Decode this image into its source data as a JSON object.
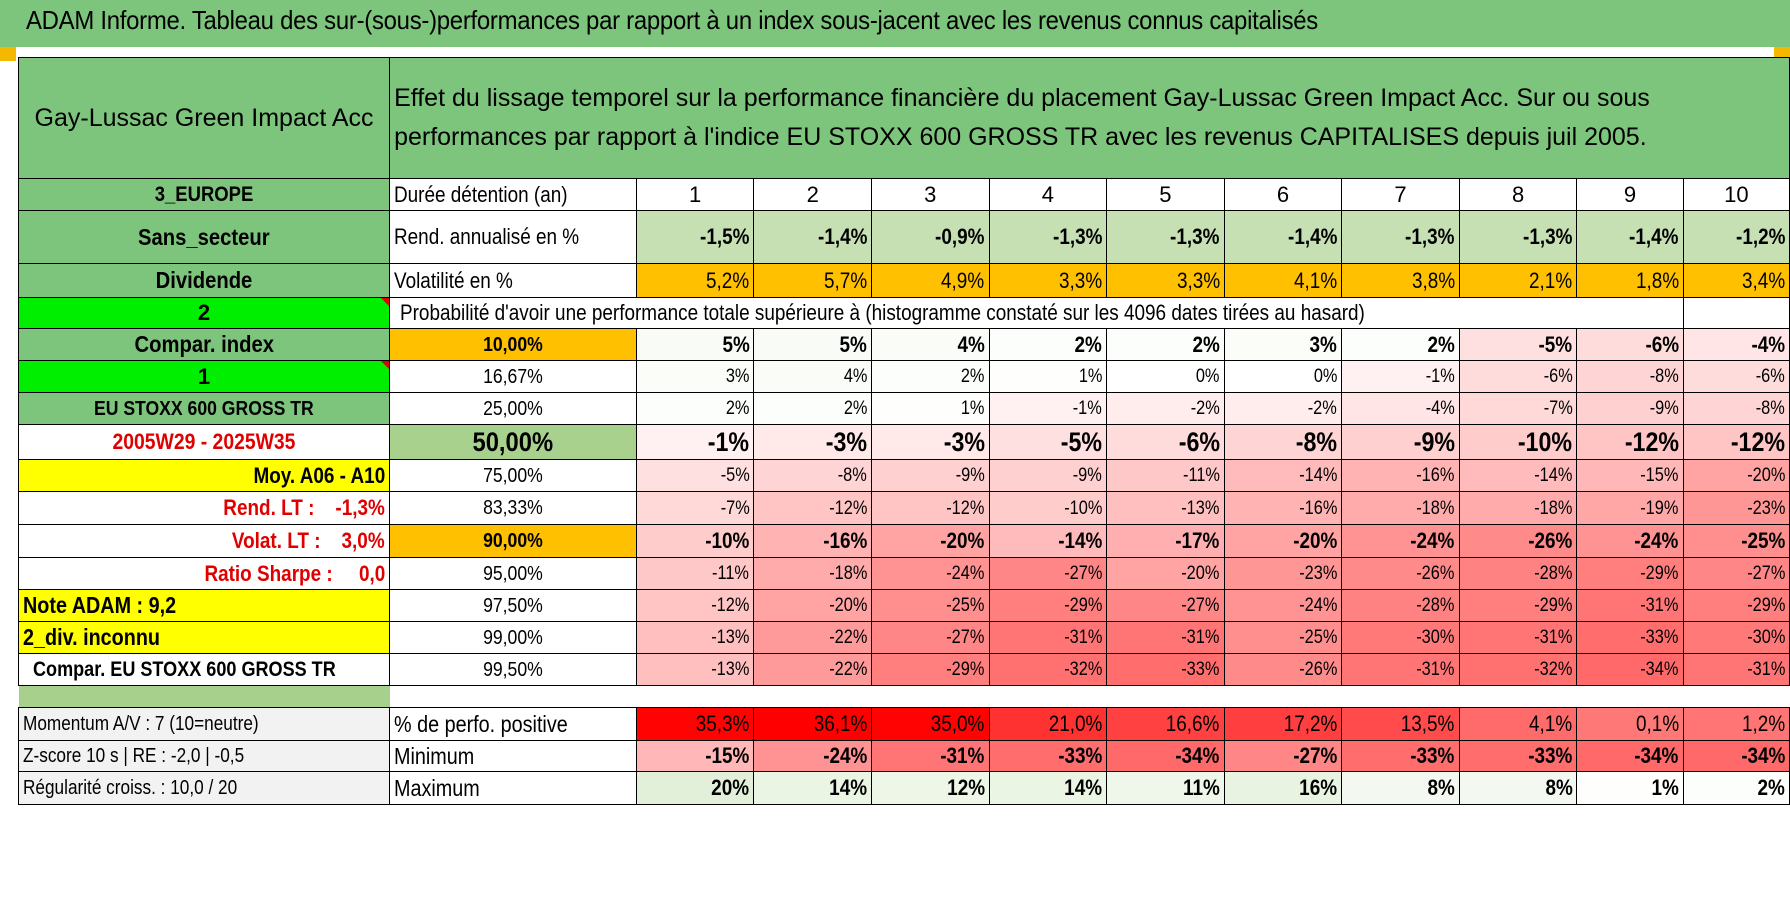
{
  "header": {
    "title": "ADAM Informe. Tableau des sur-(sous-)performances par rapport à un index sous-jacent avec les revenus connus capitalisés"
  },
  "fund": {
    "name": "Gay-Lussac Green Impact Acc",
    "description": "Effet du lissage temporel sur la performance financière du placement Gay-Lussac Green Impact Acc. Sur ou sous performances par rapport à l'indice EU STOXX 600 GROSS TR avec les revenus CAPITALISES depuis juil 2005."
  },
  "side": {
    "zone": "3_EUROPE",
    "sector": "Sans_secteur",
    "dividend": "Dividende",
    "code2": "2",
    "compar_index": "Compar. index",
    "code1": "1",
    "index_name": "EU STOXX 600 GROSS TR",
    "period": "2005W29 - 2025W35",
    "moy": "Moy. A06 - A10",
    "rend_lt": "Rend. LT :    -1,3%",
    "volat_lt": "Volat. LT :    3,0%",
    "sharpe": "Ratio Sharpe :     0,0",
    "note": "Note ADAM : 9,2",
    "div": "2_div. inconnu",
    "compar_full": "Compar. EU STOXX 600 GROSS TR",
    "momentum": "Momentum A/V : 7 (10=neutre)",
    "zscore": "Z-score 10 s | RE : -2,0 | -0,5",
    "regularite": "Régularité croiss. : 10,0 / 20"
  },
  "rows": {
    "duree": {
      "label": "Durée détention (an)",
      "values": [
        "1",
        "2",
        "3",
        "4",
        "5",
        "6",
        "7",
        "8",
        "9",
        "10"
      ]
    },
    "rend": {
      "label": "Rend. annualisé en %",
      "values": [
        "-1,5%",
        "-1,4%",
        "-0,9%",
        "-1,3%",
        "-1,3%",
        "-1,4%",
        "-1,3%",
        "-1,3%",
        "-1,4%",
        "-1,2%"
      ]
    },
    "vol": {
      "label": "Volatilité en %",
      "values": [
        "5,2%",
        "5,7%",
        "4,9%",
        "3,3%",
        "3,3%",
        "4,1%",
        "3,8%",
        "2,1%",
        "1,8%",
        "3,4%"
      ]
    },
    "proba_label": "Probabilité d'avoir une performance totale supérieure à (histogramme constaté sur les 4096 dates tirées au hasard)",
    "percentiles": [
      {
        "p": "10,00%",
        "values": [
          "5%",
          "5%",
          "4%",
          "2%",
          "2%",
          "3%",
          "2%",
          "-5%",
          "-6%",
          "-4%"
        ]
      },
      {
        "p": "16,67%",
        "values": [
          "3%",
          "4%",
          "2%",
          "1%",
          "0%",
          "0%",
          "-1%",
          "-6%",
          "-8%",
          "-6%"
        ]
      },
      {
        "p": "25,00%",
        "values": [
          "2%",
          "2%",
          "1%",
          "-1%",
          "-2%",
          "-2%",
          "-4%",
          "-7%",
          "-9%",
          "-8%"
        ]
      },
      {
        "p": "50,00%",
        "values": [
          "-1%",
          "-3%",
          "-3%",
          "-5%",
          "-6%",
          "-8%",
          "-9%",
          "-10%",
          "-12%",
          "-12%"
        ]
      },
      {
        "p": "75,00%",
        "values": [
          "-5%",
          "-8%",
          "-9%",
          "-9%",
          "-11%",
          "-14%",
          "-16%",
          "-14%",
          "-15%",
          "-20%"
        ]
      },
      {
        "p": "83,33%",
        "values": [
          "-7%",
          "-12%",
          "-12%",
          "-10%",
          "-13%",
          "-16%",
          "-18%",
          "-18%",
          "-19%",
          "-23%"
        ]
      },
      {
        "p": "90,00%",
        "values": [
          "-10%",
          "-16%",
          "-20%",
          "-14%",
          "-17%",
          "-20%",
          "-24%",
          "-26%",
          "-24%",
          "-25%"
        ]
      },
      {
        "p": "95,00%",
        "values": [
          "-11%",
          "-18%",
          "-24%",
          "-27%",
          "-20%",
          "-23%",
          "-26%",
          "-28%",
          "-29%",
          "-27%"
        ]
      },
      {
        "p": "97,50%",
        "values": [
          "-12%",
          "-20%",
          "-25%",
          "-29%",
          "-27%",
          "-24%",
          "-28%",
          "-29%",
          "-31%",
          "-29%"
        ]
      },
      {
        "p": "99,00%",
        "values": [
          "-13%",
          "-22%",
          "-27%",
          "-31%",
          "-31%",
          "-25%",
          "-30%",
          "-31%",
          "-33%",
          "-30%"
        ]
      },
      {
        "p": "99,50%",
        "values": [
          "-13%",
          "-22%",
          "-29%",
          "-32%",
          "-33%",
          "-26%",
          "-31%",
          "-32%",
          "-34%",
          "-31%"
        ]
      }
    ],
    "positive": {
      "label": "% de perfo. positive",
      "values": [
        "35,3%",
        "36,1%",
        "35,0%",
        "21,0%",
        "16,6%",
        "17,2%",
        "13,5%",
        "4,1%",
        "0,1%",
        "1,2%"
      ]
    },
    "minimum": {
      "label": "Minimum",
      "values": [
        "-15%",
        "-24%",
        "-31%",
        "-33%",
        "-34%",
        "-27%",
        "-33%",
        "-33%",
        "-34%",
        "-34%"
      ]
    },
    "maximum": {
      "label": "Maximum",
      "values": [
        "20%",
        "14%",
        "12%",
        "14%",
        "11%",
        "16%",
        "8%",
        "8%",
        "1%",
        "2%"
      ]
    }
  },
  "colors": {
    "green_header": "#7dc47d",
    "green_mid": "#a8d08d",
    "green_bright": "#00ee00",
    "yellow": "#ffff00",
    "orange": "#ffc000",
    "red_text": "#e00000"
  }
}
